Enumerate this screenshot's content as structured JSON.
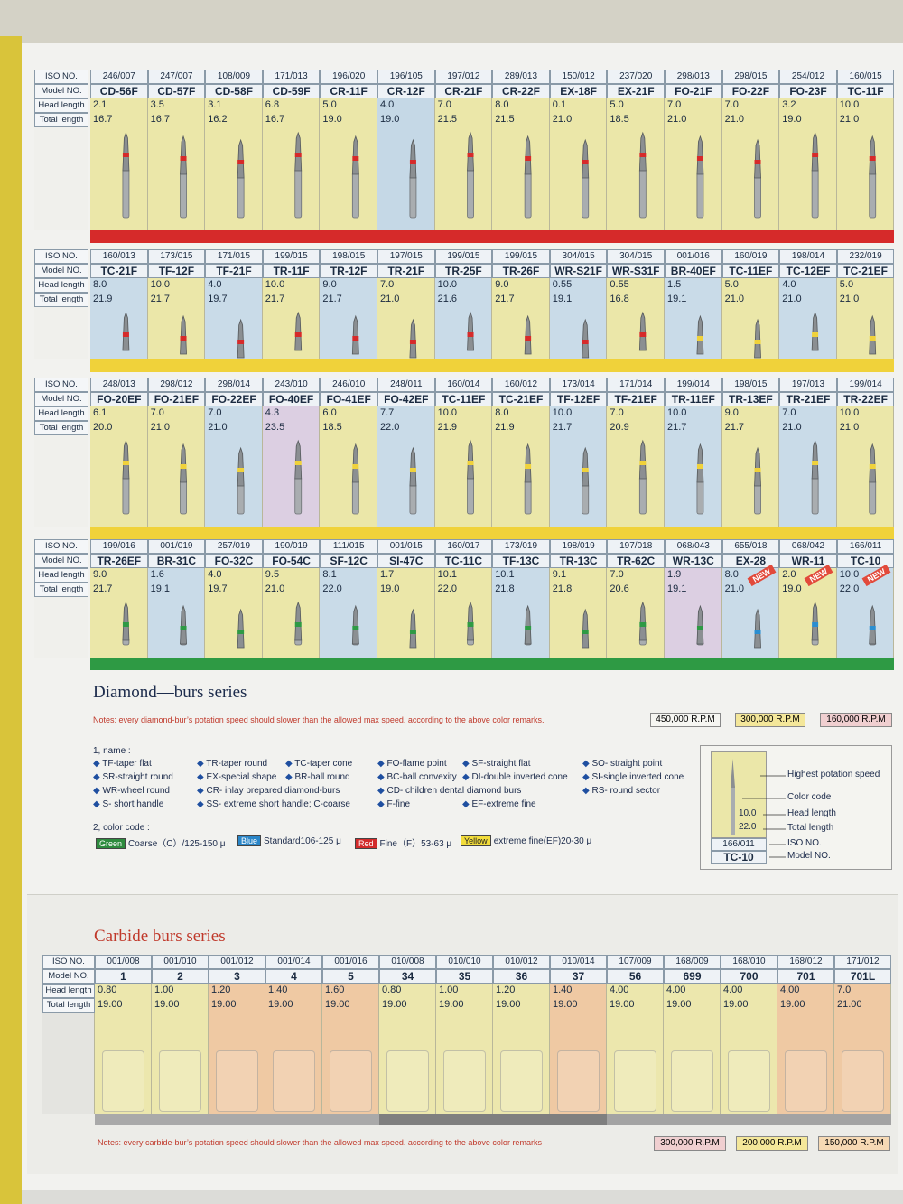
{
  "row_labels": [
    "ISO NO.",
    "Model NO.",
    "Head length",
    "Total length"
  ],
  "diamond_panels": [
    {
      "columns": [
        {
          "iso": "246/007",
          "model": "CD-56F",
          "head": "2.1",
          "total": "16.7"
        },
        {
          "iso": "247/007",
          "model": "CD-57F",
          "head": "3.5",
          "total": "16.7"
        },
        {
          "iso": "108/009",
          "model": "CD-58F",
          "head": "3.1",
          "total": "16.2"
        },
        {
          "iso": "171/013",
          "model": "CD-59F",
          "head": "6.8",
          "total": "16.7"
        },
        {
          "iso": "196/020",
          "model": "CR-11F",
          "head": "5.0",
          "total": "19.0"
        },
        {
          "iso": "196/105",
          "model": "CR-12F",
          "head": "4.0",
          "total": "19.0"
        },
        {
          "iso": "197/012",
          "model": "CR-21F",
          "head": "7.0",
          "total": "21.5"
        },
        {
          "iso": "289/013",
          "model": "CR-22F",
          "head": "8.0",
          "total": "21.5"
        },
        {
          "iso": "150/012",
          "model": "EX-18F",
          "head": "0.1",
          "total": "21.0"
        },
        {
          "iso": "237/020",
          "model": "EX-21F",
          "head": "5.0",
          "total": "18.5"
        },
        {
          "iso": "298/013",
          "model": "FO-21F",
          "head": "7.0",
          "total": "21.0"
        },
        {
          "iso": "298/015",
          "model": "FO-22F",
          "head": "7.0",
          "total": "21.0"
        },
        {
          "iso": "254/012",
          "model": "FO-23F",
          "head": "3.2",
          "total": "19.0"
        },
        {
          "iso": "160/015",
          "model": "TC-11F",
          "head": "10.0",
          "total": "21.0"
        }
      ]
    },
    {
      "columns": [
        {
          "iso": "160/013",
          "model": "TC-21F",
          "head": "8.0",
          "total": "21.9"
        },
        {
          "iso": "173/015",
          "model": "TF-12F",
          "head": "10.0",
          "total": "21.7"
        },
        {
          "iso": "171/015",
          "model": "TF-21F",
          "head": "4.0",
          "total": "19.7"
        },
        {
          "iso": "199/015",
          "model": "TR-11F",
          "head": "10.0",
          "total": "21.7"
        },
        {
          "iso": "198/015",
          "model": "TR-12F",
          "head": "9.0",
          "total": "21.7"
        },
        {
          "iso": "197/015",
          "model": "TR-21F",
          "head": "7.0",
          "total": "21.0"
        },
        {
          "iso": "199/015",
          "model": "TR-25F",
          "head": "10.0",
          "total": "21.6"
        },
        {
          "iso": "199/015",
          "model": "TR-26F",
          "head": "9.0",
          "total": "21.7"
        },
        {
          "iso": "304/015",
          "model": "WR-S21F",
          "head": "0.55",
          "total": "19.1"
        },
        {
          "iso": "304/015",
          "model": "WR-S31F",
          "head": "0.55",
          "total": "16.8"
        },
        {
          "iso": "001/016",
          "model": "BR-40EF",
          "head": "1.5",
          "total": "19.1"
        },
        {
          "iso": "160/019",
          "model": "TC-11EF",
          "head": "5.0",
          "total": "21.0"
        },
        {
          "iso": "198/014",
          "model": "TC-12EF",
          "head": "4.0",
          "total": "21.0"
        },
        {
          "iso": "232/019",
          "model": "TC-21EF",
          "head": "5.0",
          "total": "21.0"
        }
      ]
    },
    {
      "columns": [
        {
          "iso": "248/013",
          "model": "FO-20EF",
          "head": "6.1",
          "total": "20.0"
        },
        {
          "iso": "298/012",
          "model": "FO-21EF",
          "head": "7.0",
          "total": "21.0"
        },
        {
          "iso": "298/014",
          "model": "FO-22EF",
          "head": "7.0",
          "total": "21.0"
        },
        {
          "iso": "243/010",
          "model": "FO-40EF",
          "head": "4.3",
          "total": "23.5"
        },
        {
          "iso": "246/010",
          "model": "FO-41EF",
          "head": "6.0",
          "total": "18.5"
        },
        {
          "iso": "248/011",
          "model": "FO-42EF",
          "head": "7.7",
          "total": "22.0"
        },
        {
          "iso": "160/014",
          "model": "TC-11EF",
          "head": "10.0",
          "total": "21.9"
        },
        {
          "iso": "160/012",
          "model": "TC-21EF",
          "head": "8.0",
          "total": "21.9"
        },
        {
          "iso": "173/014",
          "model": "TF-12EF",
          "head": "10.0",
          "total": "21.7"
        },
        {
          "iso": "171/014",
          "model": "TF-21EF",
          "head": "7.0",
          "total": "20.9"
        },
        {
          "iso": "199/014",
          "model": "TR-11EF",
          "head": "10.0",
          "total": "21.7"
        },
        {
          "iso": "198/015",
          "model": "TR-13EF",
          "head": "9.0",
          "total": "21.7"
        },
        {
          "iso": "197/013",
          "model": "TR-21EF",
          "head": "7.0",
          "total": "21.0"
        },
        {
          "iso": "199/014",
          "model": "TR-22EF",
          "head": "10.0",
          "total": "21.0"
        }
      ]
    },
    {
      "columns": [
        {
          "iso": "199/016",
          "model": "TR-26EF",
          "head": "9.0",
          "total": "21.7"
        },
        {
          "iso": "001/019",
          "model": "BR-31C",
          "head": "1.6",
          "total": "19.1"
        },
        {
          "iso": "257/019",
          "model": "FO-32C",
          "head": "4.0",
          "total": "19.7"
        },
        {
          "iso": "190/019",
          "model": "FO-54C",
          "head": "9.5",
          "total": "21.0"
        },
        {
          "iso": "111/015",
          "model": "SF-12C",
          "head": "8.1",
          "total": "22.0"
        },
        {
          "iso": "001/015",
          "model": "SI-47C",
          "head": "1.7",
          "total": "19.0"
        },
        {
          "iso": "160/017",
          "model": "TC-11C",
          "head": "10.1",
          "total": "22.0"
        },
        {
          "iso": "173/019",
          "model": "TF-13C",
          "head": "10.1",
          "total": "21.8"
        },
        {
          "iso": "198/019",
          "model": "TR-13C",
          "head": "9.1",
          "total": "21.8"
        },
        {
          "iso": "197/018",
          "model": "TR-62C",
          "head": "7.0",
          "total": "20.6"
        },
        {
          "iso": "068/043",
          "model": "WR-13C",
          "head": "1.9",
          "total": "19.1"
        },
        {
          "iso": "655/018",
          "model": "EX-28",
          "head": "8.0",
          "total": "21.0"
        },
        {
          "iso": "068/042",
          "model": "WR-11",
          "head": "2.0",
          "total": "19.0"
        },
        {
          "iso": "166/011",
          "model": "TC-10",
          "head": "10.0",
          "total": "22.0"
        }
      ]
    }
  ],
  "new_badge": "NEW",
  "diamond_title": "Diamond—burs series",
  "diamond_notes": "Notes: every diamond-bur’s potation speed should slower than the allowed max speed. according to the above color remarks.",
  "diamond_speeds": [
    "450,000 R.P.M",
    "300,000 R.P.M",
    "160,000 R.P.M"
  ],
  "name_heading": "1, name :",
  "names": [
    "TF-taper flat",
    "TR-taper round",
    "TC-taper cone",
    "FO-flame point",
    "SF-straight flat",
    "SO- straight point",
    "SR-straight round",
    "EX-special shape",
    "BR-ball round",
    "BC-ball convexity",
    "DI-double inverted cone",
    "SI-single inverted cone",
    "WR-wheel round",
    "CR- inlay prepared diamond-burs",
    "CD- children dental diamond burs",
    "RS- round sector",
    "S- short handle",
    "SS- extreme short handle; C-coarse",
    "F-fine",
    "EF-extreme fine"
  ],
  "color_heading": "2, color code :",
  "color_codes": [
    {
      "swatch": "Green",
      "text": "Coarse（C）/125-150 μ"
    },
    {
      "swatch": "Blue",
      "text": "Standard106-125 μ"
    },
    {
      "swatch": "Red",
      "text": "Fine（F）53-63 μ"
    },
    {
      "swatch": "Yellow",
      "text": "extreme fine(EF)20-30 μ"
    }
  ],
  "legend_diagram": {
    "speed": "Highest potation speed",
    "color": "Color code",
    "head_value": "10.0",
    "head": "Head length",
    "total_value": "22.0",
    "total": "Total length",
    "iso_value": "166/011",
    "iso": "ISO NO.",
    "model_value": "TC-10",
    "model": "Model NO."
  },
  "carbide_title": "Carbide burs series",
  "carbide_columns": [
    {
      "iso": "001/008",
      "model": "1",
      "head": "0.80",
      "total": "19.00"
    },
    {
      "iso": "001/010",
      "model": "2",
      "head": "1.00",
      "total": "19.00"
    },
    {
      "iso": "001/012",
      "model": "3",
      "head": "1.20",
      "total": "19.00"
    },
    {
      "iso": "001/014",
      "model": "4",
      "head": "1.40",
      "total": "19.00"
    },
    {
      "iso": "001/016",
      "model": "5",
      "head": "1.60",
      "total": "19.00"
    },
    {
      "iso": "010/008",
      "model": "34",
      "head": "0.80",
      "total": "19.00"
    },
    {
      "iso": "010/010",
      "model": "35",
      "head": "1.00",
      "total": "19.00"
    },
    {
      "iso": "010/012",
      "model": "36",
      "head": "1.20",
      "total": "19.00"
    },
    {
      "iso": "010/014",
      "model": "37",
      "head": "1.40",
      "total": "19.00"
    },
    {
      "iso": "107/009",
      "model": "56",
      "head": "4.00",
      "total": "19.00"
    },
    {
      "iso": "168/009",
      "model": "699",
      "head": "4.00",
      "total": "19.00"
    },
    {
      "iso": "168/010",
      "model": "700",
      "head": "4.00",
      "total": "19.00"
    },
    {
      "iso": "168/012",
      "model": "701",
      "head": "4.00",
      "total": "19.00"
    },
    {
      "iso": "171/012",
      "model": "701L",
      "head": "7.0",
      "total": "21.00"
    }
  ],
  "carbide_notes": "Notes: every carbide-bur’s potation speed should slower than the allowed max speed. according to the above color remarks",
  "carbide_speeds": [
    "300,000 R.P.M",
    "200,000 R.P.M",
    "150,000 R.P.M"
  ]
}
